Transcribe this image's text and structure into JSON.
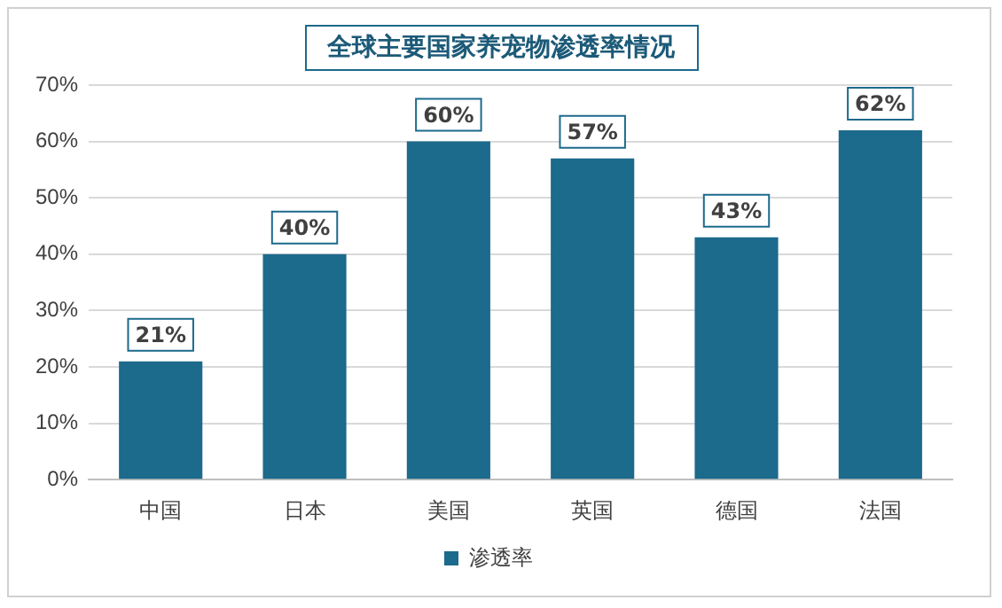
{
  "chart_data": {
    "type": "bar",
    "title": "全球主要国家养宠物渗透率情况",
    "categories": [
      "中国",
      "日本",
      "美国",
      "英国",
      "德国",
      "法国"
    ],
    "series": [
      {
        "name": "渗透率",
        "color": "#1c6a8c",
        "values": [
          21,
          40,
          60,
          57,
          43,
          62
        ],
        "value_labels": [
          "21%",
          "40%",
          "60%",
          "57%",
          "43%",
          "62%"
        ]
      }
    ],
    "ylim": [
      0,
      70
    ],
    "yticks": [
      {
        "value": 0,
        "label": "0%"
      },
      {
        "value": 10,
        "label": "10%"
      },
      {
        "value": 20,
        "label": "20%"
      },
      {
        "value": 30,
        "label": "30%"
      },
      {
        "value": 40,
        "label": "40%"
      },
      {
        "value": 50,
        "label": "50%"
      },
      {
        "value": 60,
        "label": "60%"
      },
      {
        "value": 70,
        "label": "70%"
      }
    ],
    "grid": "y",
    "legend": "bottom"
  }
}
